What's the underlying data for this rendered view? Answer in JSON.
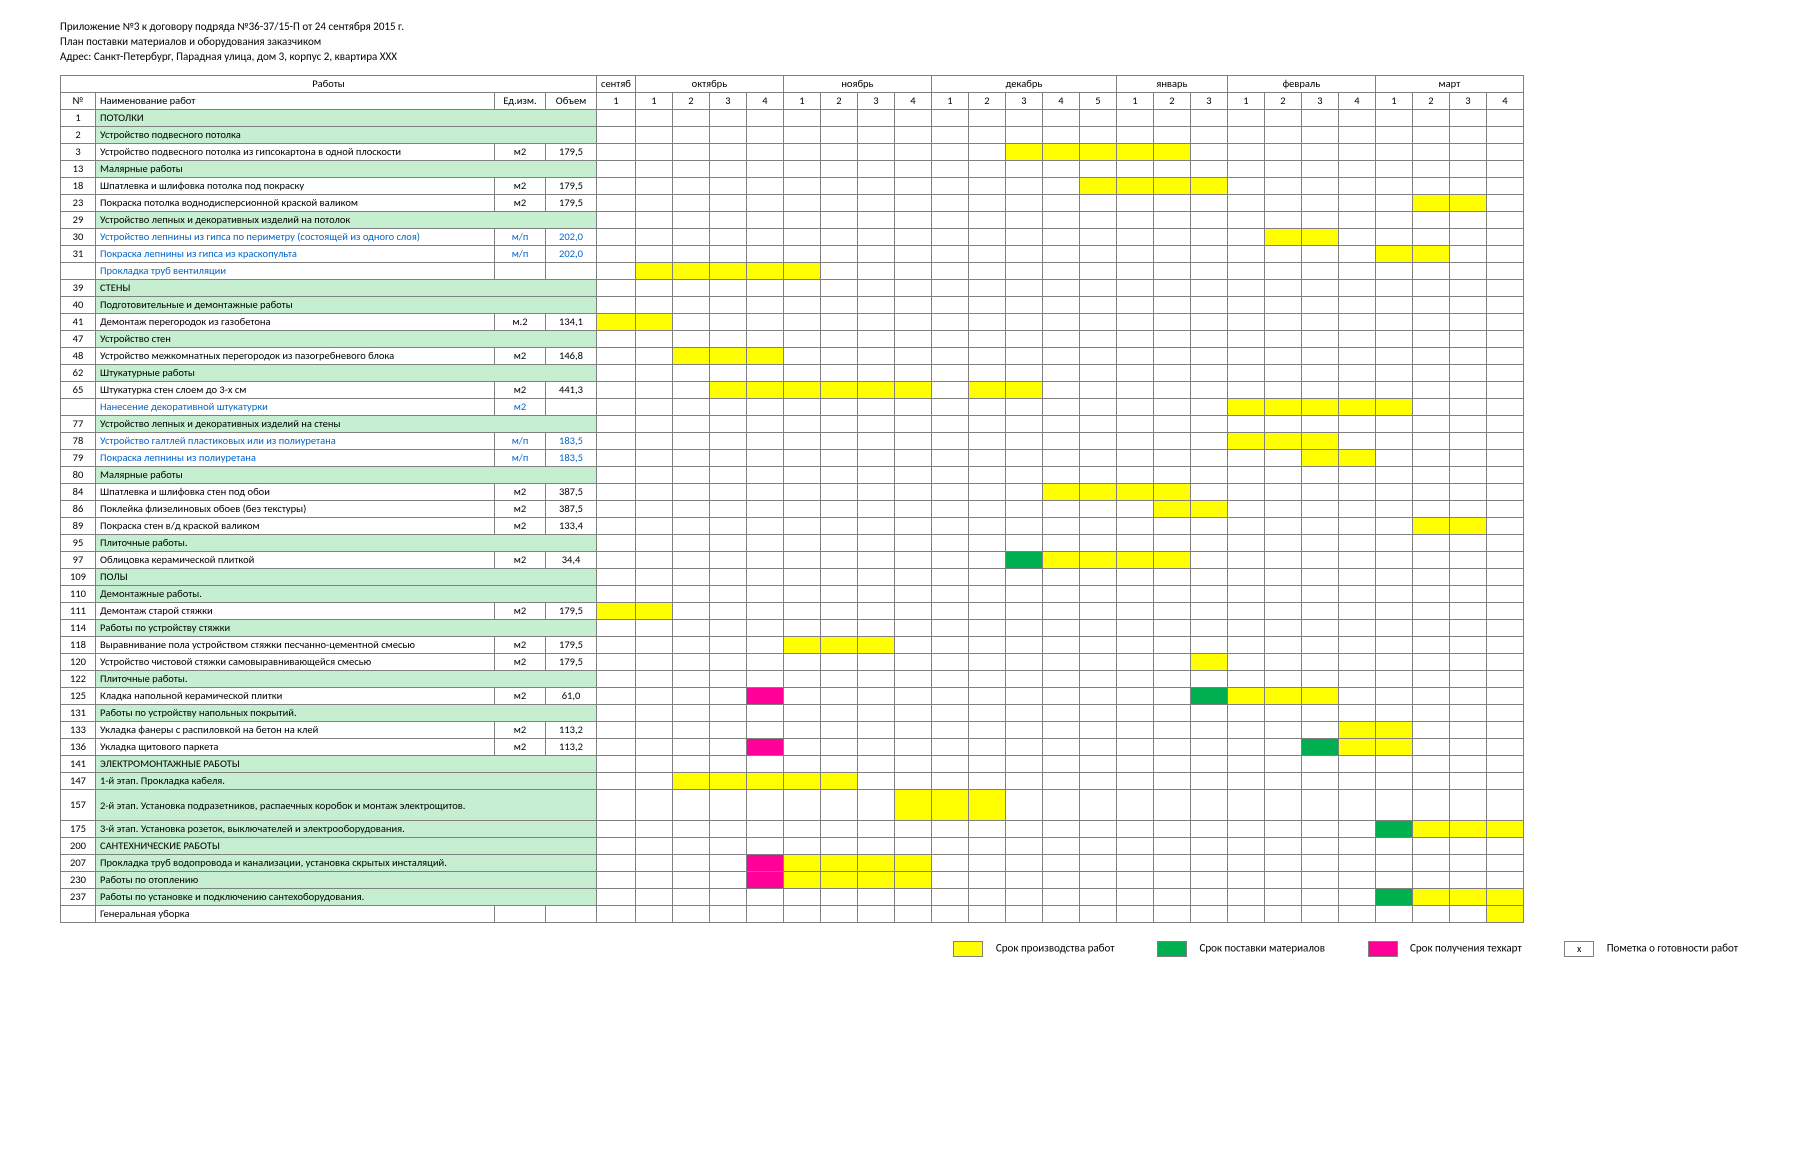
{
  "header": {
    "line1": "Приложение №3 к договору подряда №36-37/15-П от 24 сентября 2015 г.",
    "line2": "План поставки материалов и оборудования заказчиком",
    "line3": "Адрес: Санкт-Петербург, Парадная улица, дом 3, корпус 2, квартира XXX"
  },
  "columns": {
    "works_group": "Работы",
    "num": "№",
    "name": "Наименование работ",
    "unit": "Ед.изм.",
    "vol": "Объем"
  },
  "months": [
    {
      "name": "сентяб",
      "weeks": [
        "1"
      ]
    },
    {
      "name": "октябрь",
      "weeks": [
        "1",
        "2",
        "3",
        "4"
      ]
    },
    {
      "name": "ноябрь",
      "weeks": [
        "1",
        "2",
        "3",
        "4"
      ]
    },
    {
      "name": "декабрь",
      "weeks": [
        "1",
        "2",
        "3",
        "4",
        "5"
      ]
    },
    {
      "name": "январь",
      "weeks": [
        "1",
        "2",
        "3"
      ]
    },
    {
      "name": "февраль",
      "weeks": [
        "1",
        "2",
        "3",
        "4"
      ]
    },
    {
      "name": "март",
      "weeks": [
        "1",
        "2",
        "3",
        "4"
      ]
    }
  ],
  "legend": {
    "l1": "Срок производства работ",
    "l2": "Срок поставки материалов",
    "l3": "Срок получения техкарт",
    "l4": "Пометка о готовности работ",
    "l4_mark": "x"
  },
  "colors": {
    "section_bg": "#c6efd1",
    "work_yellow": "#ffff00",
    "delivery_green": "#00b050",
    "techcard_magenta": "#ff0099",
    "link_blue": "#0066cc",
    "border": "#808080",
    "background": "#ffffff"
  },
  "rows": [
    {
      "num": "1",
      "name": "ПОТОЛКИ",
      "section": true
    },
    {
      "num": "2",
      "name": "Устройство подвесного потолка",
      "section": true
    },
    {
      "num": "3",
      "name": "Устройство подвесного потолка из гипсокартона в одной плоскости",
      "unit": "м2",
      "vol": "179,5",
      "cells": {
        "12": "yellow",
        "13": "yellow",
        "14": "yellow",
        "15": "yellow",
        "16": "yellow"
      }
    },
    {
      "num": "13",
      "name": "Малярные работы",
      "section": true
    },
    {
      "num": "18",
      "name": "Шпатлевка и шлифовка потолка под покраску",
      "unit": "м2",
      "vol": "179,5",
      "cells": {
        "14": "yellow",
        "15": "yellow",
        "16": "yellow",
        "17": "yellow"
      }
    },
    {
      "num": "23",
      "name": "Покраска потолка воднодисперсионной краской валиком",
      "unit": "м2",
      "vol": "179,5",
      "cells": {
        "23": "yellow",
        "24": "yellow"
      }
    },
    {
      "num": "29",
      "name": "Устройство лепных и декоративных изделий на потолок",
      "section": true
    },
    {
      "num": "30",
      "name": "Устройство лепнины из гипса по периметру (состоящей из одного слоя)",
      "unit": "м/п",
      "vol": "202,0",
      "blue": true,
      "cells": {
        "19": "yellow",
        "20": "yellow"
      }
    },
    {
      "num": "31",
      "name": "Покраска лепнины из гипса из краскопульта",
      "unit": "м/п",
      "vol": "202,0",
      "blue": true,
      "cells": {
        "22": "yellow",
        "23": "yellow"
      }
    },
    {
      "num": "",
      "name": "Прокладка труб вентиляции",
      "blue": true,
      "cells": {
        "2": "yellow",
        "3": "yellow",
        "4": "yellow",
        "5": "yellow",
        "6": "yellow"
      }
    },
    {
      "num": "39",
      "name": "СТЕНЫ",
      "section": true
    },
    {
      "num": "40",
      "name": "Подготовительные и демонтажные работы",
      "section": true
    },
    {
      "num": "41",
      "name": "Демонтаж перегородок из газобетона",
      "unit": "м.2",
      "vol": "134,1",
      "cells": {
        "1": "yellow",
        "2": "yellow"
      }
    },
    {
      "num": "47",
      "name": "Устройство стен",
      "section": true
    },
    {
      "num": "48",
      "name": "Устройство межкомнатных перегородок из пазогребневого блока",
      "unit": "м2",
      "vol": "146,8",
      "cells": {
        "3": "yellow",
        "4": "yellow",
        "5": "yellow"
      }
    },
    {
      "num": "62",
      "name": "Штукатурные работы",
      "section": true
    },
    {
      "num": "65",
      "name": "Штукатурка стен слоем до 3-х см",
      "unit": "м2",
      "vol": "441,3",
      "cells": {
        "4": "yellow",
        "5": "yellow",
        "6": "yellow",
        "7": "yellow",
        "8": "yellow",
        "9": "yellow",
        "11": "yellow",
        "12": "yellow"
      }
    },
    {
      "num": "",
      "name": "Нанесение декоративной штукатурки",
      "unit": "м2",
      "blue": true,
      "cells": {
        "18": "yellow",
        "19": "yellow",
        "20": "yellow",
        "21": "yellow",
        "22": "yellow"
      }
    },
    {
      "num": "77",
      "name": "Устройство лепных и декоративных изделий на стены",
      "section": true
    },
    {
      "num": "78",
      "name": "Устройство галтлей пластиковых или из полиуретана",
      "unit": "м/п",
      "vol": "183,5",
      "blue": true,
      "cells": {
        "18": "yellow",
        "19": "yellow",
        "20": "yellow"
      }
    },
    {
      "num": "79",
      "name": "Покраска лепнины из полиуретана",
      "unit": "м/п",
      "vol": "183,5",
      "blue": true,
      "cells": {
        "20": "yellow",
        "21": "yellow"
      }
    },
    {
      "num": "80",
      "name": "Малярные работы",
      "section": true
    },
    {
      "num": "84",
      "name": "Шпатлевка и шлифовка стен под обои",
      "unit": "м2",
      "vol": "387,5",
      "cells": {
        "13": "yellow",
        "14": "yellow",
        "15": "yellow",
        "16": "yellow"
      }
    },
    {
      "num": "86",
      "name": "Поклейка флизелиновых обоев (без текстуры)",
      "unit": "м2",
      "vol": "387,5",
      "cells": {
        "16": "yellow",
        "17": "yellow"
      }
    },
    {
      "num": "89",
      "name": "Покраска стен в/д краской валиком",
      "unit": "м2",
      "vol": "133,4",
      "cells": {
        "23": "yellow",
        "24": "yellow"
      }
    },
    {
      "num": "95",
      "name": "Плиточные работы.",
      "section": true
    },
    {
      "num": "97",
      "name": "Облицовка керамической плиткой",
      "unit": "м2",
      "vol": "34,4",
      "cells": {
        "12": "green",
        "13": "yellow",
        "14": "yellow",
        "15": "yellow",
        "16": "yellow"
      }
    },
    {
      "num": "109",
      "name": "ПОЛЫ",
      "section": true
    },
    {
      "num": "110",
      "name": "Демонтажные работы.",
      "section": true
    },
    {
      "num": "111",
      "name": "Демонтаж старой стяжки",
      "unit": "м2",
      "vol": "179,5",
      "cells": {
        "1": "yellow",
        "2": "yellow"
      }
    },
    {
      "num": "114",
      "name": "Работы по устройству стяжки",
      "section": true
    },
    {
      "num": "118",
      "name": "Выравнивание пола устройством стяжки песчанно-цементной смесью",
      "unit": "м2",
      "vol": "179,5",
      "cells": {
        "6": "yellow",
        "7": "yellow",
        "8": "yellow"
      }
    },
    {
      "num": "120",
      "name": "Устройство чистовой стяжки самовыравнивающейся смесью",
      "unit": "м2",
      "vol": "179,5",
      "cells": {
        "17": "yellow"
      }
    },
    {
      "num": "122",
      "name": "Плиточные работы.",
      "section": true
    },
    {
      "num": "125",
      "name": "Кладка напольной керамической плитки",
      "unit": "м2",
      "vol": "61,0",
      "cells": {
        "5": "magenta",
        "17": "green",
        "18": "yellow",
        "19": "yellow",
        "20": "yellow"
      }
    },
    {
      "num": "131",
      "name": "Работы по устройству напольных покрытий.",
      "section": true
    },
    {
      "num": "133",
      "name": "Укладка фанеры с распиловкой на бетон на клей",
      "unit": "м2",
      "vol": "113,2",
      "cells": {
        "21": "yellow",
        "22": "yellow"
      }
    },
    {
      "num": "136",
      "name": "Укладка щитового паркета",
      "unit": "м2",
      "vol": "113,2",
      "cells": {
        "5": "magenta",
        "20": "green",
        "21": "yellow",
        "22": "yellow"
      }
    },
    {
      "num": "141",
      "name": "ЭЛЕКТРОМОНТАЖНЫЕ РАБОТЫ",
      "section": true
    },
    {
      "num": "147",
      "name": "1-й этап. Прокладка кабеля.",
      "section": true,
      "cells": {
        "3": "yellow",
        "4": "yellow",
        "5": "yellow",
        "6": "yellow",
        "7": "yellow"
      }
    },
    {
      "num": "157",
      "name": "2-й этап. Установка подразетников, распаечных коробок и монтаж электрощитов.",
      "section": true,
      "wrap": true,
      "cells": {
        "9": "yellow",
        "10": "yellow",
        "11": "yellow"
      }
    },
    {
      "num": "175",
      "name": "3-й этап. Установка розеток, выключателей и  электрооборудования.",
      "section": true,
      "cells": {
        "22": "green",
        "23": "yellow",
        "24": "yellow",
        "25": "yellow"
      }
    },
    {
      "num": "200",
      "name": "САНТЕХНИЧЕСКИЕ РАБОТЫ",
      "section": true
    },
    {
      "num": "207",
      "name": "Прокладка труб водопровода и канализации, установка скрытых инсталяций.",
      "section": true,
      "cells": {
        "5": "magenta",
        "6": "yellow",
        "7": "yellow",
        "8": "yellow",
        "9": "yellow"
      }
    },
    {
      "num": "230",
      "name": "Работы по отоплению",
      "section": true,
      "cells": {
        "5": "magenta",
        "6": "yellow",
        "7": "yellow",
        "8": "yellow",
        "9": "yellow"
      }
    },
    {
      "num": "237",
      "name": "Работы по установке и подключению сантехоборудования.",
      "section": true,
      "cells": {
        "22": "green",
        "23": "yellow",
        "24": "yellow",
        "25": "yellow"
      }
    },
    {
      "num": "",
      "name": "Генеральная уборка",
      "cells": {
        "25": "yellow"
      }
    }
  ]
}
